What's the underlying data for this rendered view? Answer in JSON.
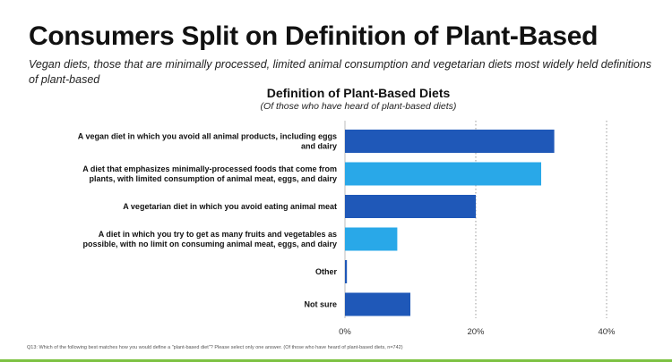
{
  "header": {
    "title": "Consumers Split on Definition of Plant-Based",
    "subtitle": "Vegan diets, those that are minimally processed, limited animal consumption and vegetarian diets most widely held definitions of plant-based"
  },
  "footnote": "Q13: Which of the following best matches how you would define a \"plant-based diet\"? Please select only one answer. (Of those who have heard of plant-based diets, n=742)",
  "colors": {
    "dark_bar": "#1f58b8",
    "light_bar": "#29a8e8",
    "gridline": "#9a9a9a",
    "accent_band": "#7dc242"
  },
  "chart_data": {
    "type": "bar",
    "orientation": "horizontal",
    "title": "Definition of Plant-Based Diets",
    "subtitle": "(Of those who have heard of plant-based diets)",
    "categories": [
      [
        "A vegan diet in which you avoid all animal products, including eggs",
        "and dairy"
      ],
      [
        "A diet that emphasizes minimally-processed foods that come from",
        "plants, with limited consumption of animal meat, eggs, and dairy"
      ],
      [
        "A vegetarian diet in which you avoid eating animal meat"
      ],
      [
        "A diet in which you try to get as many fruits and vegetables as",
        "possible, with no limit on consuming animal meat, eggs, and dairy"
      ],
      [
        "Other"
      ],
      [
        "Not sure"
      ]
    ],
    "values": [
      32,
      30,
      20,
      8,
      0.3,
      10
    ],
    "bar_colors": [
      "#1f58b8",
      "#29a8e8",
      "#1f58b8",
      "#29a8e8",
      "#1f58b8",
      "#1f58b8"
    ],
    "xlim": [
      0,
      40
    ],
    "xticks": [
      "0%",
      "20%",
      "40%"
    ],
    "grid": "dotted vertical"
  }
}
